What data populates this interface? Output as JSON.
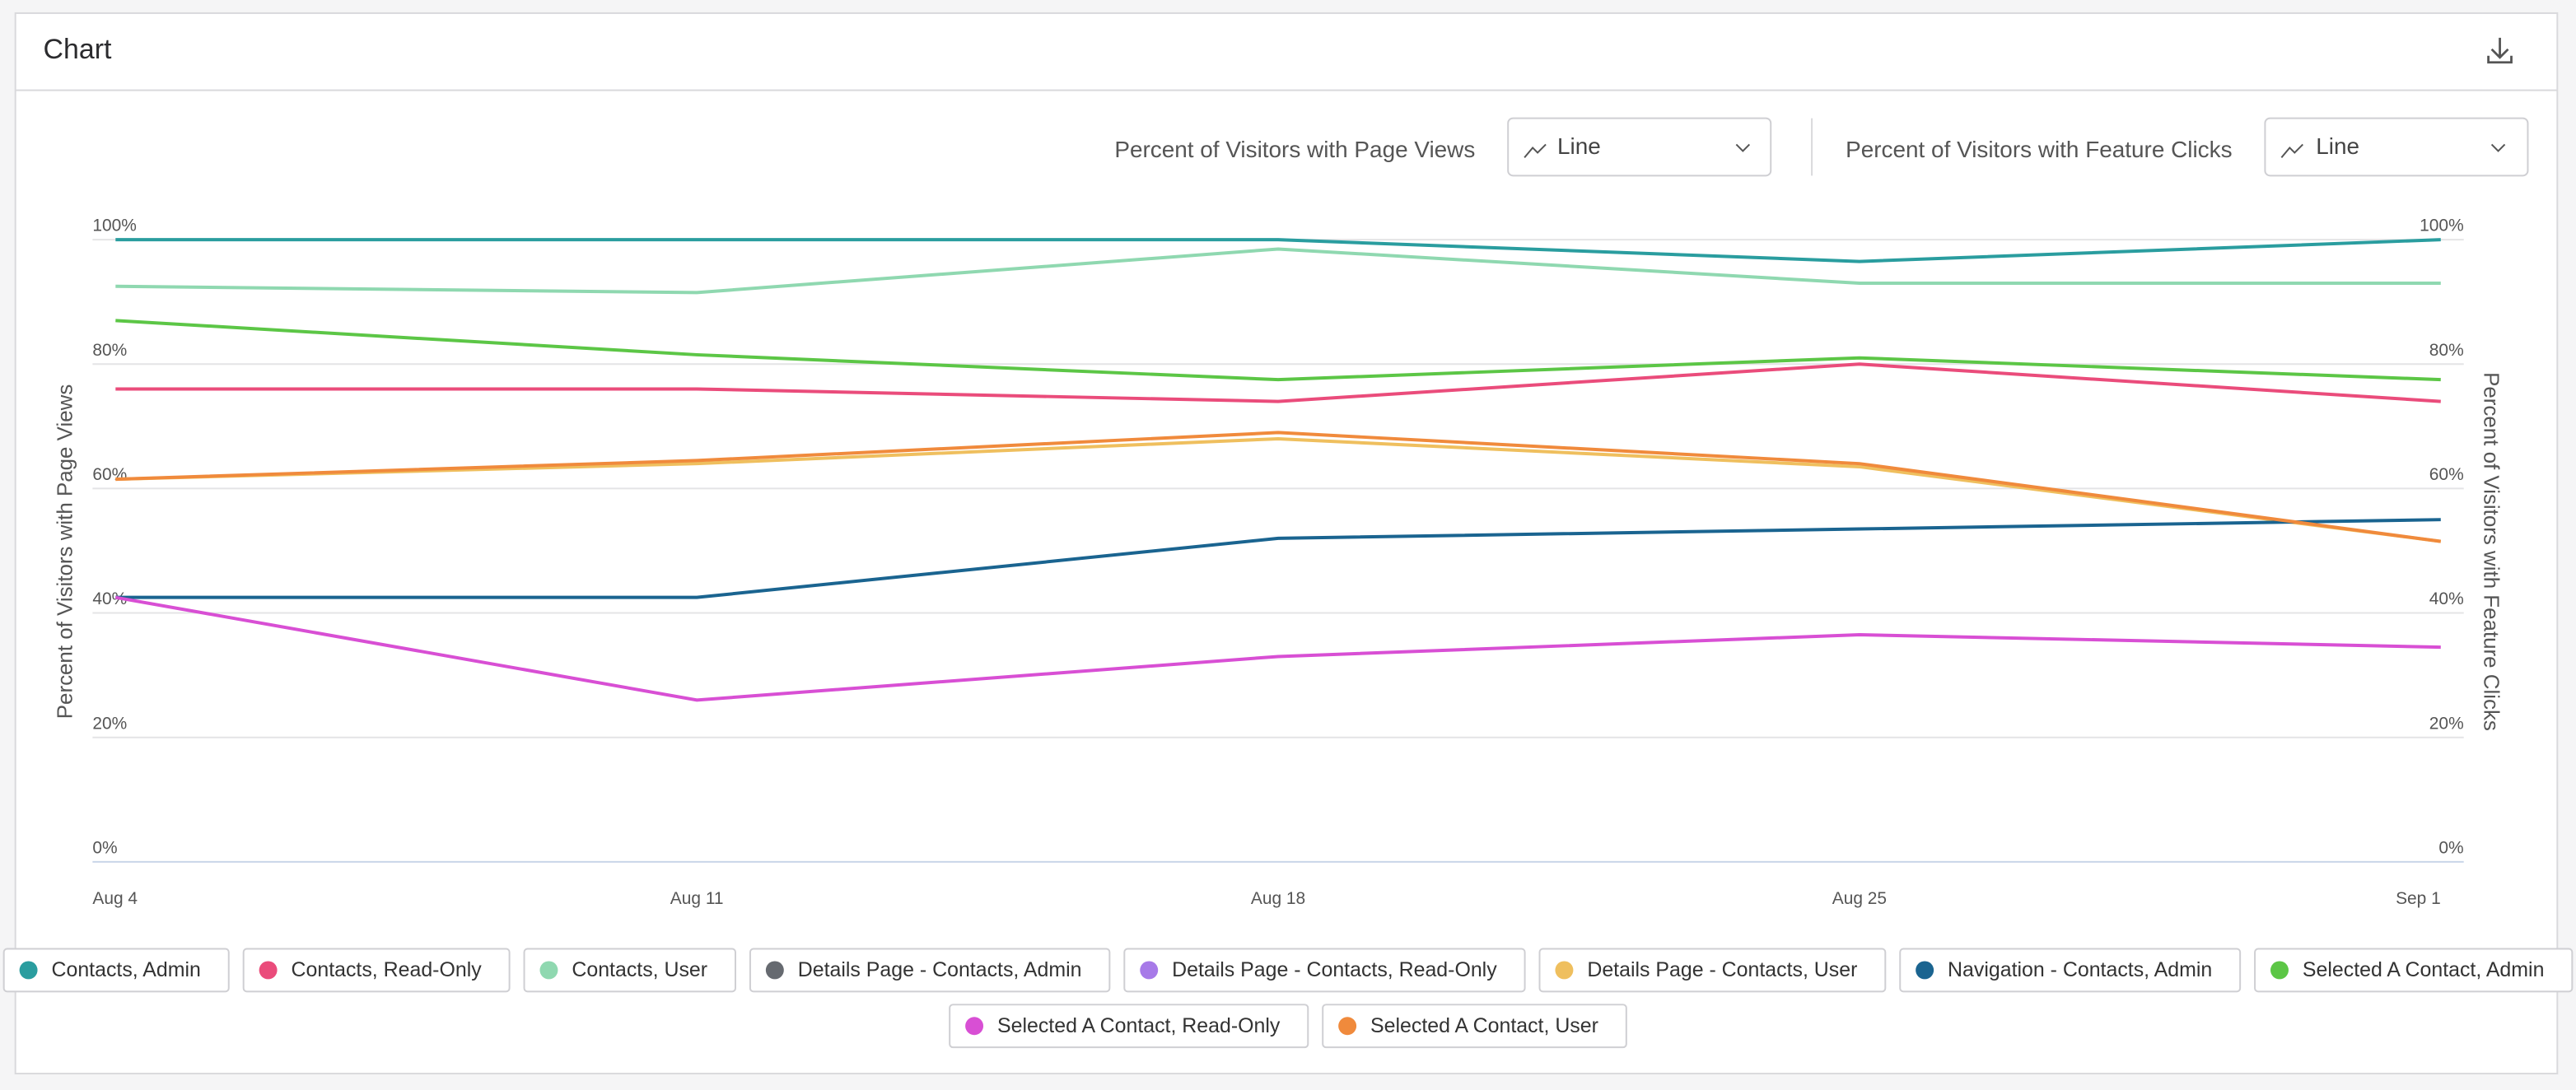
{
  "header": {
    "title": "Chart"
  },
  "controls": [
    {
      "label": "Percent of Visitors with Page Views",
      "value": "Line"
    },
    {
      "label": "Percent of Visitors with Feature Clicks",
      "value": "Line"
    }
  ],
  "chart_data": {
    "type": "line",
    "ylabel": "Percent of Visitors with Page Views",
    "y2label": "Percent of Visitors with Feature Clicks",
    "categories": [
      "Aug 4",
      "Aug 11",
      "Aug 18",
      "Aug 25",
      "Sep 1"
    ],
    "ylim": [
      0,
      100
    ],
    "yticks": [
      {
        "value": 0,
        "label": "0%"
      },
      {
        "value": 20,
        "label": "20%"
      },
      {
        "value": 40,
        "label": "40%"
      },
      {
        "value": 60,
        "label": "60%"
      },
      {
        "value": 80,
        "label": "80%"
      },
      {
        "value": 100,
        "label": "100%"
      }
    ],
    "y2lim": [
      0,
      100
    ],
    "y2ticks": [
      {
        "value": 0,
        "label": "0%"
      },
      {
        "value": 20,
        "label": "20%"
      },
      {
        "value": 40,
        "label": "40%"
      },
      {
        "value": 60,
        "label": "60%"
      },
      {
        "value": 80,
        "label": "80%"
      },
      {
        "value": 100,
        "label": "100%"
      }
    ],
    "grid": true,
    "series": [
      {
        "name": "Contacts, Admin",
        "color": "#2a9d9f",
        "values": [
          100,
          100,
          100,
          96.5,
          100
        ]
      },
      {
        "name": "Contacts, Read-Only",
        "color": "#ea4c7b",
        "values": [
          76,
          76,
          74,
          80,
          74
        ]
      },
      {
        "name": "Contacts, User",
        "color": "#8fd8b0",
        "values": [
          92.5,
          91.5,
          98.5,
          93,
          93
        ]
      },
      {
        "name": "Details Page - Contacts, Admin",
        "color": "#666a70",
        "values": [
          null,
          null,
          null,
          null,
          null
        ]
      },
      {
        "name": "Details Page - Contacts, Read-Only",
        "color": "#a77ae8",
        "values": [
          null,
          null,
          null,
          null,
          null
        ]
      },
      {
        "name": "Details Page - Contacts, User",
        "color": "#efbf5e",
        "values": [
          61.5,
          64,
          68,
          63.5,
          51.5
        ]
      },
      {
        "name": "Navigation - Contacts, Admin",
        "color": "#1a6490",
        "values": [
          42.5,
          42.5,
          52,
          53.5,
          55
        ]
      },
      {
        "name": "Selected A Contact, Admin",
        "color": "#5cc646",
        "values": [
          87,
          81.5,
          77.5,
          81,
          77.5
        ]
      },
      {
        "name": "Selected A Contact, Read-Only",
        "color": "#d84fd4",
        "values": [
          42.5,
          26,
          33,
          36.5,
          34.5
        ]
      },
      {
        "name": "Selected A Contact, User",
        "color": "#f08a3c",
        "values": [
          61.5,
          64.5,
          69,
          64,
          51.5
        ]
      }
    ]
  }
}
